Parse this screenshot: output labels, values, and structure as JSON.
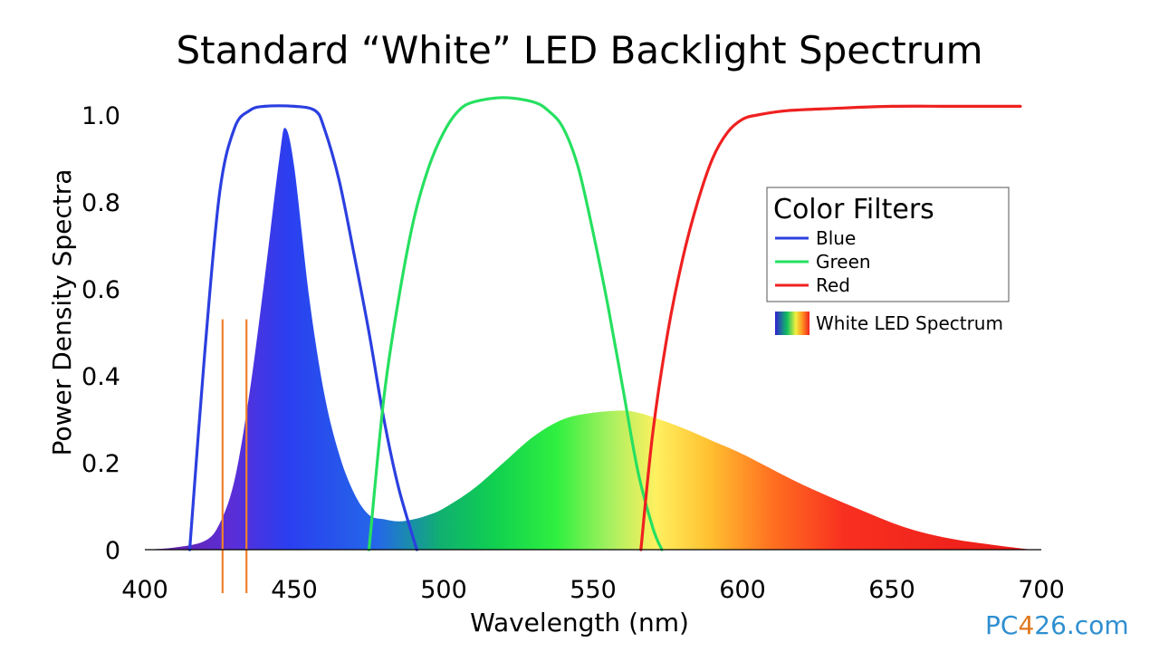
{
  "chart_data": {
    "type": "area",
    "title": "Standard “White” LED Backlight Spectrum",
    "xlabel": "Wavelength (nm)",
    "ylabel": "Power Density Spectra",
    "xlim": [
      400,
      700
    ],
    "ylim": [
      0,
      1.05
    ],
    "x_ticks": [
      "400",
      "450",
      "500",
      "550",
      "600",
      "650",
      "700"
    ],
    "y_ticks": [
      "0",
      "0.2",
      "0.4",
      "0.6",
      "0.8",
      "1.0"
    ],
    "grid": false,
    "legend": {
      "title": "Color Filters",
      "position": "right",
      "items": [
        {
          "label": "Blue",
          "color": "#2b3fe0"
        },
        {
          "label": "Green",
          "color": "#26e060"
        },
        {
          "label": "Red",
          "color": "#ef2020"
        }
      ],
      "spectrum_label": "White LED Spectrum"
    },
    "series": [
      {
        "name": "White LED Spectrum",
        "kind": "filled-area",
        "x": [
          400,
          410,
          420,
          425,
          430,
          435,
          440,
          445,
          447,
          450,
          455,
          460,
          465,
          470,
          475,
          480,
          485,
          490,
          495,
          500,
          510,
          520,
          530,
          540,
          550,
          560,
          565,
          570,
          580,
          590,
          600,
          620,
          640,
          655,
          670,
          685,
          697
        ],
        "y": [
          0,
          0.005,
          0.02,
          0.06,
          0.16,
          0.36,
          0.62,
          0.9,
          0.97,
          0.88,
          0.58,
          0.36,
          0.22,
          0.13,
          0.08,
          0.07,
          0.065,
          0.07,
          0.08,
          0.095,
          0.14,
          0.2,
          0.26,
          0.3,
          0.315,
          0.32,
          0.315,
          0.305,
          0.28,
          0.25,
          0.22,
          0.15,
          0.09,
          0.05,
          0.025,
          0.01,
          0
        ]
      },
      {
        "name": "Blue",
        "kind": "line",
        "color": "#2b3fe0",
        "x": [
          415,
          420,
          425,
          430,
          435,
          440,
          450,
          457,
          460,
          465,
          470,
          475,
          480,
          485,
          491
        ],
        "y": [
          0,
          0.45,
          0.82,
          0.97,
          1.01,
          1.02,
          1.02,
          1.01,
          0.97,
          0.85,
          0.68,
          0.5,
          0.3,
          0.14,
          0
        ]
      },
      {
        "name": "Green",
        "kind": "line",
        "color": "#26e060",
        "x": [
          475,
          480,
          485,
          490,
          495,
          500,
          505,
          510,
          520,
          530,
          535,
          540,
          545,
          550,
          555,
          560,
          565,
          570,
          573
        ],
        "y": [
          0,
          0.35,
          0.58,
          0.76,
          0.88,
          0.96,
          1.01,
          1.03,
          1.04,
          1.03,
          1.01,
          0.97,
          0.88,
          0.73,
          0.56,
          0.37,
          0.18,
          0.05,
          0
        ]
      },
      {
        "name": "Red",
        "kind": "line",
        "color": "#ef2020",
        "x": [
          566,
          570,
          575,
          580,
          585,
          590,
          595,
          600,
          605,
          615,
          630,
          650,
          670,
          693
        ],
        "y": [
          0,
          0.27,
          0.5,
          0.67,
          0.8,
          0.9,
          0.96,
          0.99,
          1.0,
          1.01,
          1.015,
          1.02,
          1.02,
          1.02
        ]
      },
      {
        "name": "Markers",
        "kind": "vertical-lines",
        "color": "#f0802a",
        "x": [
          426,
          434
        ],
        "y_range": [
          -0.1,
          0.53
        ]
      }
    ]
  },
  "watermark": {
    "p": "P",
    "c": "C",
    "four": "4",
    "rest": "26.com"
  }
}
